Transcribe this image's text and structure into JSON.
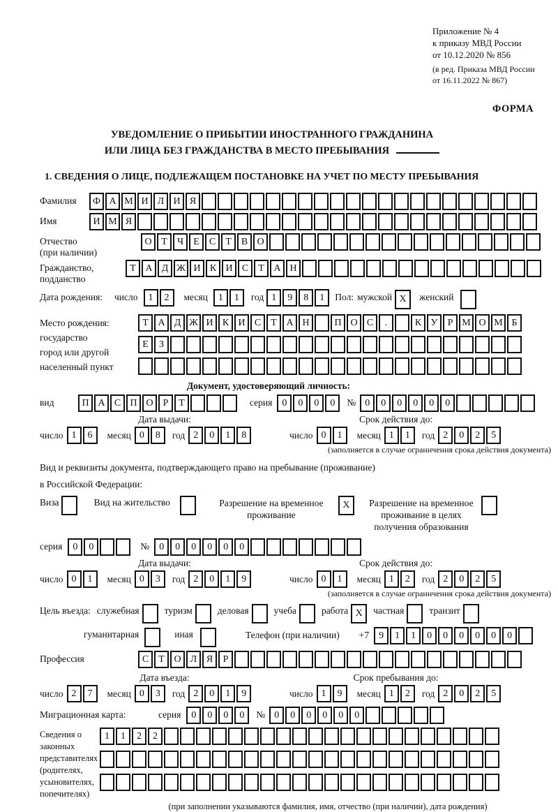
{
  "labels": {
    "day": "число",
    "month": "месяц",
    "year": "год",
    "series": "серия",
    "number": "№"
  },
  "header": {
    "appendix_lines": [
      "Приложение № 4",
      "к приказу МВД России",
      "от 10.12.2020 № 856"
    ],
    "edition_lines": [
      "(в ред. Приказа МВД России",
      "от 16.11.2022 № 867)"
    ],
    "form_label": "ФОРМА"
  },
  "title": {
    "line1": "УВЕДОМЛЕНИЕ О ПРИБЫТИИ ИНОСТРАННОГО ГРАЖДАНИНА",
    "line2": "ИЛИ ЛИЦА БЕЗ ГРАЖДАНСТВА В МЕСТО ПРЕБЫВАНИЯ"
  },
  "section1_heading": "1. СВЕДЕНИЯ О ЛИЦЕ, ПОДЛЕЖАЩЕМ ПОСТАНОВКЕ НА УЧЕТ ПО МЕСТУ ПРЕБЫВАНИЯ",
  "person": {
    "surname": {
      "label": "Фамилия",
      "text": "ФАМИЛИЯ",
      "count": 28
    },
    "name": {
      "label": "Имя",
      "text": "ИМЯ",
      "count": 28
    },
    "patronymic": {
      "label": "Отчество",
      "label2": "(при наличии)",
      "text": "ОТЧЕСТВО",
      "count": 25
    },
    "citizenship": {
      "label": "Гражданство,",
      "label2": "подданство",
      "text": "ТАДЖИКИСТАН",
      "count": 26
    }
  },
  "birth_date": {
    "label": "Дата рождения:",
    "day": "12",
    "month": "11",
    "year": "1981",
    "sex_label": "Пол:",
    "male_label": "мужской",
    "male_checked": "X",
    "female_label": "женский",
    "female_checked": ""
  },
  "birth_place": {
    "label1": "Место рождения:",
    "label2": "государство",
    "label3": "город или другой",
    "label4": "населенный пункт",
    "row1": {
      "text": "ТАДЖИКИСТАН ПОС. КУРМОМБ",
      "count": 24
    },
    "row2": {
      "text": "ЕЗ",
      "count": 24
    },
    "row3": {
      "text": "",
      "count": 24
    }
  },
  "identity_doc": {
    "heading": "Документ, удостоверяющий личность:",
    "kind_label": "вид",
    "kind": {
      "text": "ПАСПОРТ",
      "count": 10
    },
    "series": {
      "text": "0000",
      "count": 4
    },
    "number": {
      "text": "000000",
      "count": 11
    },
    "issue": {
      "title": "Дата выдачи:",
      "day": "16",
      "month": "08",
      "year": "2018"
    },
    "valid": {
      "title": "Срок действия до:",
      "day": "01",
      "month": "11",
      "year": "2025"
    },
    "note": "(заполняется в случае ограничения срока действия документа)"
  },
  "residence_doc": {
    "intro1": "Вид и реквизиты документа, подтверждающего право на пребывание (проживание)",
    "intro2": "в Российской Федерации:",
    "options": [
      {
        "label": "Виза",
        "checked": ""
      },
      {
        "label": "Вид на жительство",
        "checked": ""
      },
      {
        "label": "Разрешение на временное проживание",
        "checked": "X"
      },
      {
        "label": "Разрешение на временное проживание в целях получения образования",
        "checked": ""
      }
    ],
    "series": {
      "text": "00",
      "count": 4
    },
    "number": {
      "text": "000000",
      "count": 13
    },
    "issue": {
      "title": "Дата выдачи:",
      "day": "01",
      "month": "03",
      "year": "2019"
    },
    "valid": {
      "title": "Срок действия до:",
      "day": "01",
      "month": "12",
      "year": "2025"
    },
    "note": "(заполняется в случае ограничения срока действия документа)"
  },
  "visit_purpose": {
    "label": "Цель въезда:",
    "options": [
      {
        "label": "служебная",
        "checked": ""
      },
      {
        "label": "туризм",
        "checked": ""
      },
      {
        "label": "деловая",
        "checked": ""
      },
      {
        "label": "учеба",
        "checked": ""
      },
      {
        "label": "работа",
        "checked": "X"
      },
      {
        "label": "частная",
        "checked": ""
      },
      {
        "label": "транзит",
        "checked": ""
      }
    ],
    "options2": [
      {
        "label": "гуманитарная",
        "checked": ""
      },
      {
        "label": "иная",
        "checked": ""
      }
    ],
    "phone_label": "Телефон (при наличии)",
    "phone_prefix": "+7",
    "phone": {
      "text": "911000000",
      "count": 10
    }
  },
  "profession": {
    "label": "Профессия",
    "text": "СТОЛЯР",
    "count": 24
  },
  "entry": {
    "issue": {
      "title": "Дата въезда:",
      "day": "27",
      "month": "03",
      "year": "2019"
    },
    "valid": {
      "title": "Срок пребывания до:",
      "day": "19",
      "month": "12",
      "year": "2025"
    }
  },
  "migration_card": {
    "label": "Миграционная карта:",
    "series": {
      "text": "0000",
      "count": 4
    },
    "number": {
      "text": "000000",
      "count": 11
    }
  },
  "representatives": {
    "label_lines": [
      "Сведения о",
      "законных",
      "представителях",
      "(родителях,",
      "усыновителях,",
      "попечителях)"
    ],
    "row1": {
      "text": "1122",
      "count": 25
    },
    "row2": {
      "text": "",
      "count": 25
    },
    "row3": {
      "text": "",
      "count": 25
    },
    "note": "(при заполнении указываются фамилия, имя, отчество (при наличии), дата рождения)"
  }
}
